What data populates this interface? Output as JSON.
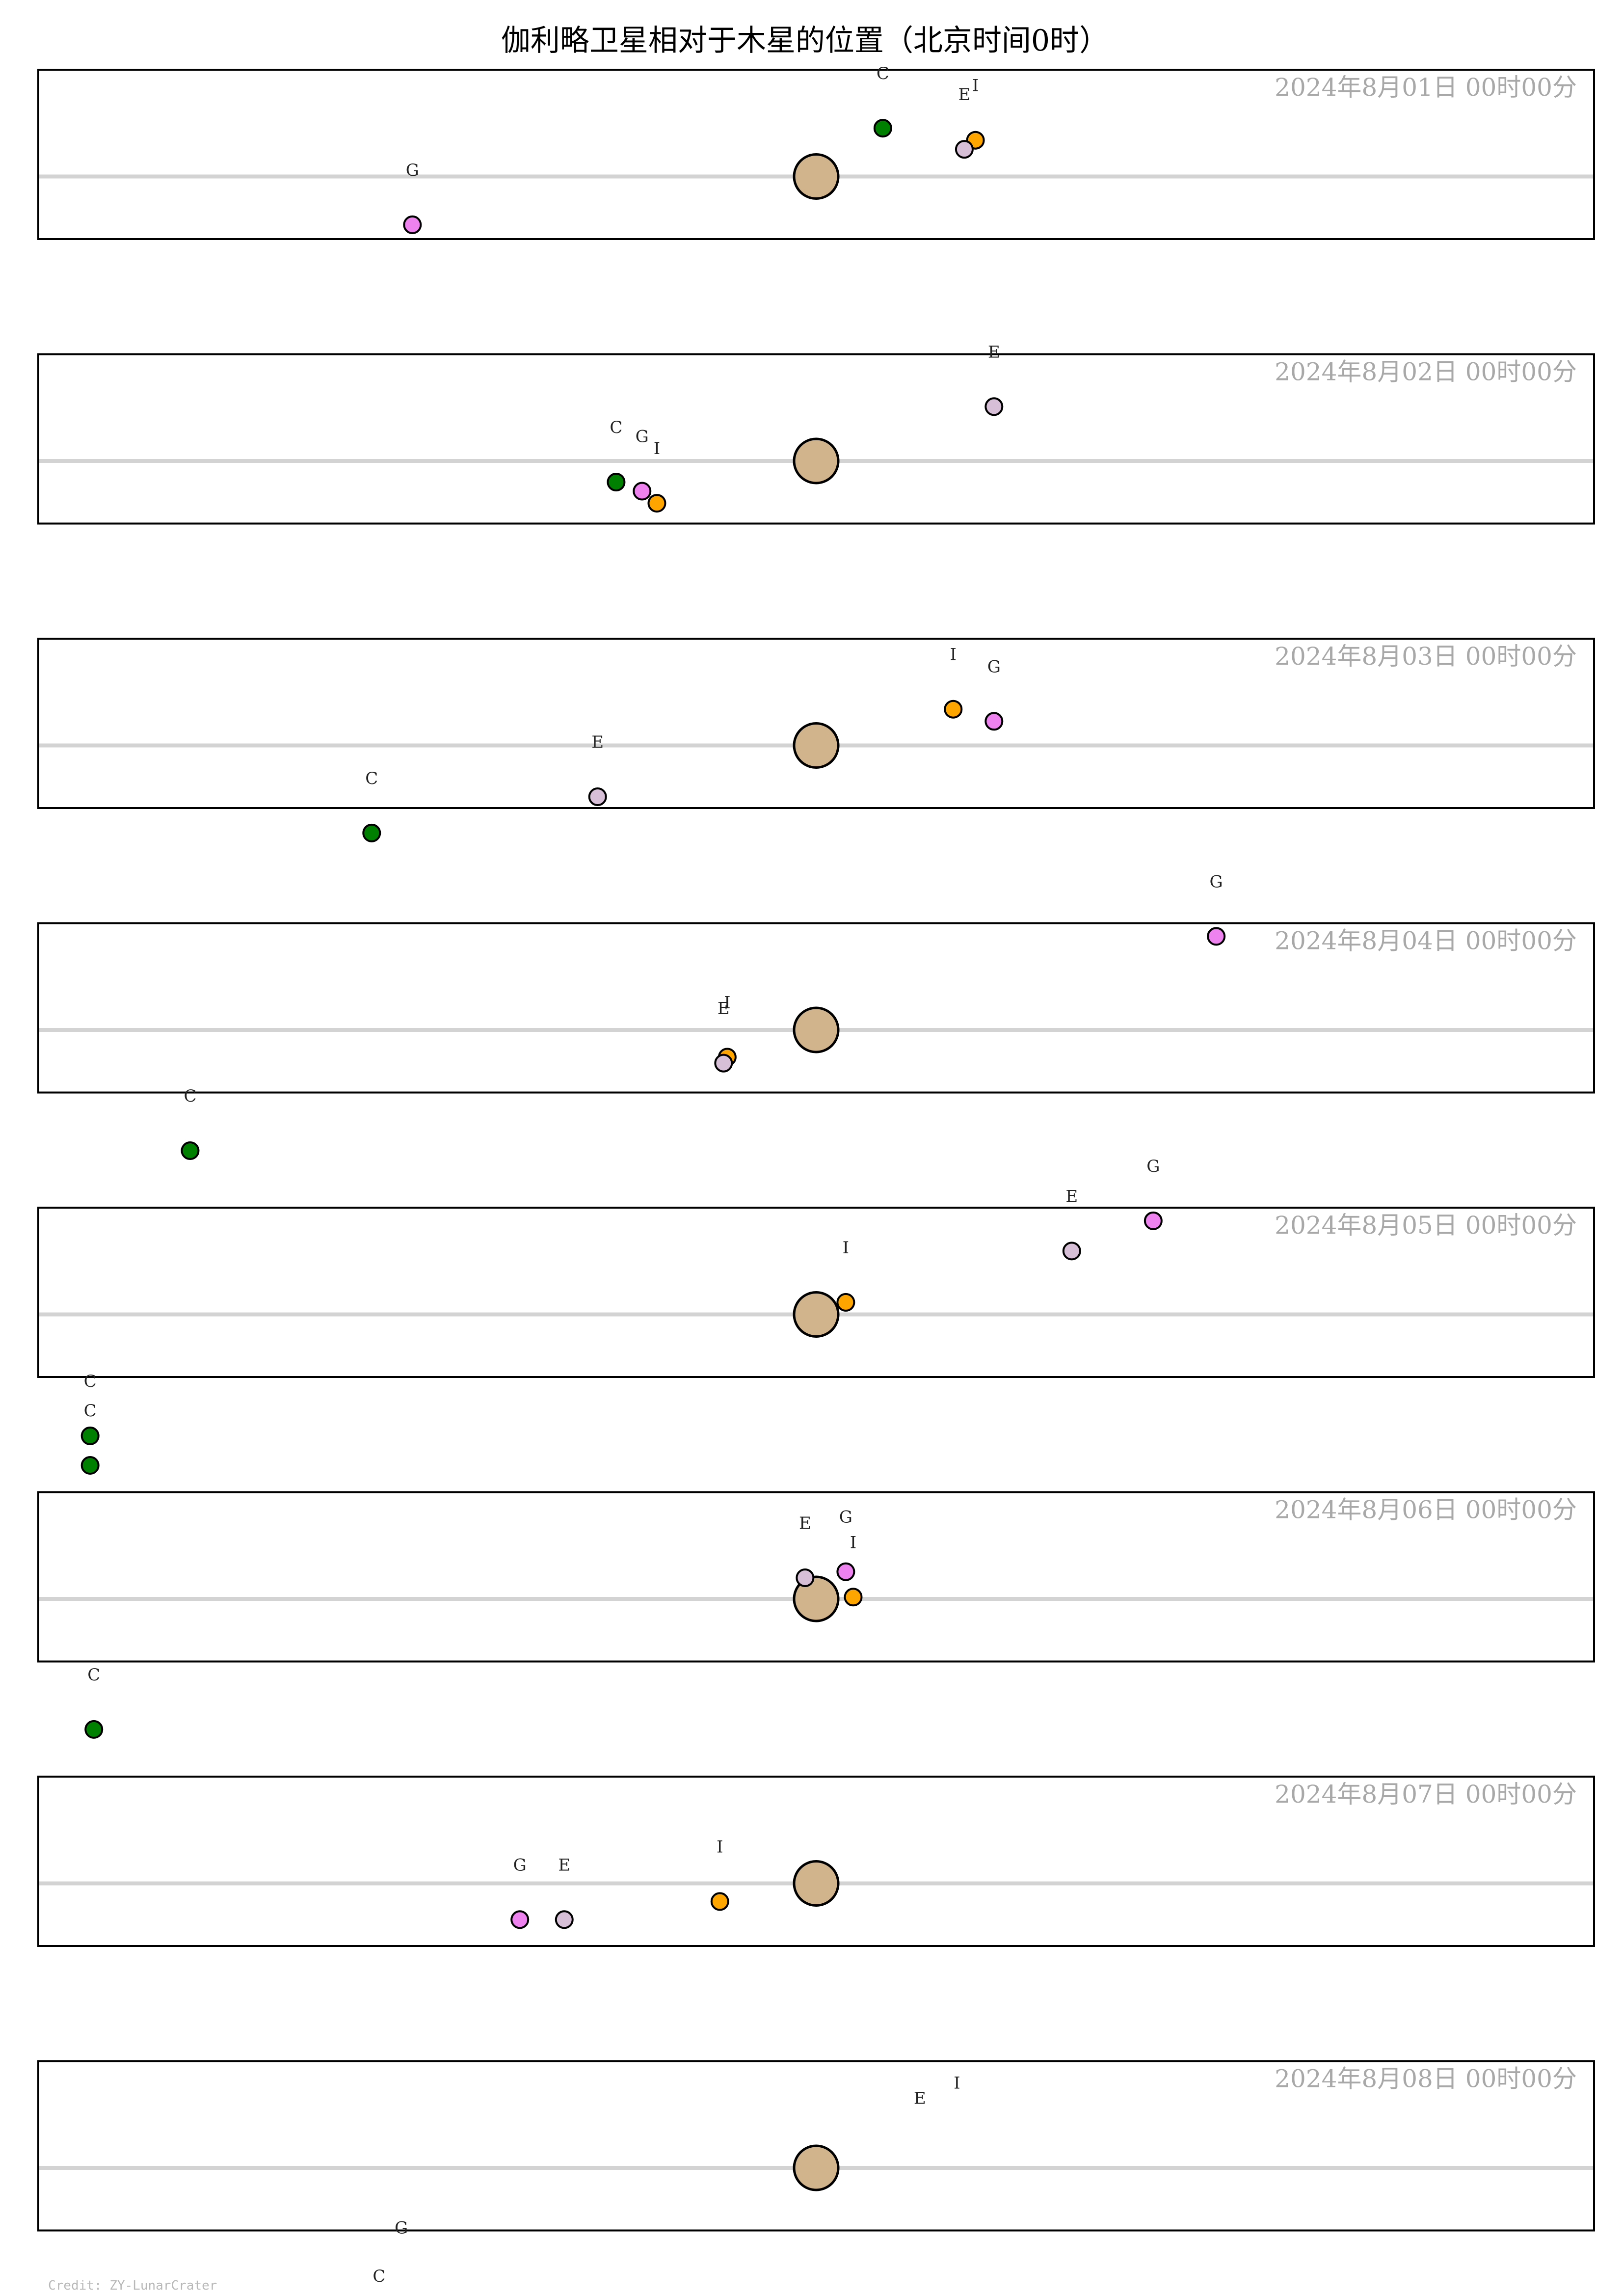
{
  "title": "伽利略卫星相对于木星的位置（北京时间0时）",
  "credit": "Credit: ZY-LunarCrater",
  "colors": {
    "jupiter": "#d2b48c",
    "Io": "#ffa500",
    "Europa": "#d8bfd8",
    "Ganymede": "#ee82ee",
    "Callisto": "#008000",
    "frame": "#000000",
    "equator": "#d3d3d3"
  },
  "chart_data": {
    "type": "scatter",
    "x_unit": "Jupiter radii (relative position, east-west)",
    "xlim": [
      -21,
      21
    ],
    "ylim": [
      -1.4,
      1.4
    ],
    "panels": [
      {
        "date": "2024年8月01日 00时00分",
        "moons": [
          {
            "label": "I",
            "x": 4.3,
            "y": 0.6
          },
          {
            "label": "E",
            "x": 4.0,
            "y": 0.45
          },
          {
            "label": "G",
            "x": -10.9,
            "y": -0.8
          },
          {
            "label": "C",
            "x": 1.8,
            "y": 0.8
          }
        ]
      },
      {
        "date": "2024年8月02日 00时00分",
        "moons": [
          {
            "label": "I",
            "x": -4.3,
            "y": -0.7
          },
          {
            "label": "E",
            "x": 4.8,
            "y": 0.9
          },
          {
            "label": "G",
            "x": -4.7,
            "y": -0.5
          },
          {
            "label": "C",
            "x": -5.4,
            "y": -0.35
          }
        ]
      },
      {
        "date": "2024年8月03日 00时00分",
        "moons": [
          {
            "label": "I",
            "x": 3.7,
            "y": 0.6
          },
          {
            "label": "E",
            "x": -5.9,
            "y": -0.85
          },
          {
            "label": "G",
            "x": 4.8,
            "y": 0.4
          },
          {
            "label": "C",
            "x": -12.0,
            "y": -1.45
          }
        ]
      },
      {
        "date": "2024年8月04日 00时00分",
        "moons": [
          {
            "label": "I",
            "x": -2.4,
            "y": -0.45
          },
          {
            "label": "E",
            "x": -2.5,
            "y": -0.55
          },
          {
            "label": "G",
            "x": 10.8,
            "y": 1.55
          },
          {
            "label": "C",
            "x": -16.9,
            "y": -2.0
          }
        ]
      },
      {
        "date": "2024年8月05日 00时00分",
        "moons": [
          {
            "label": "I",
            "x": 0.8,
            "y": 0.2
          },
          {
            "label": "E",
            "x": 6.9,
            "y": 1.05
          },
          {
            "label": "G",
            "x": 9.1,
            "y": 1.55
          },
          {
            "label": "C",
            "x": -19.6,
            "y": -2.5
          }
        ]
      },
      {
        "date": "2024年8月06日 00时00分",
        "moons": [
          {
            "label": "I",
            "x": 1.0,
            "y": 0.03
          },
          {
            "label": "E",
            "x": -0.3,
            "y": 0.35
          },
          {
            "label": "G",
            "x": 0.8,
            "y": 0.45
          },
          {
            "label": "C",
            "x": -19.6,
            "y": 2.7
          }
        ]
      },
      {
        "date": "2024年8月07日 00时00分",
        "moons": [
          {
            "label": "I",
            "x": -2.6,
            "y": -0.3
          },
          {
            "label": "E",
            "x": -6.8,
            "y": -0.6
          },
          {
            "label": "G",
            "x": -8.0,
            "y": -0.6
          },
          {
            "label": "C",
            "x": -19.5,
            "y": 2.55
          }
        ]
      },
      {
        "date": "2024年8月08日 00时00分",
        "moons": [
          {
            "label": "I",
            "x": 3.8,
            "y": 0.5
          },
          {
            "label": "E",
            "x": 2.8,
            "y": 0.25
          },
          {
            "label": "G",
            "x": -11.2,
            "y": -1.9
          },
          {
            "label": "C",
            "x": -11.8,
            "y": -2.7
          }
        ]
      }
    ]
  }
}
